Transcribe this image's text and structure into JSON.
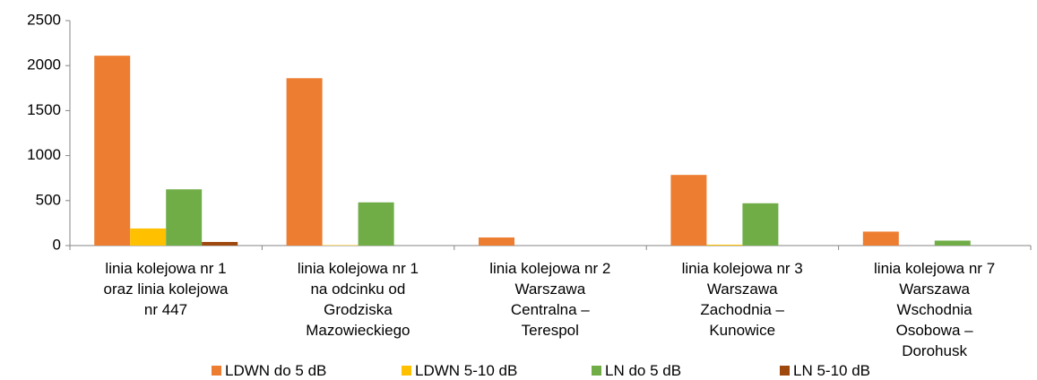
{
  "chart_data": {
    "type": "bar",
    "categories": [
      "linia kolejowa nr 1\noraz linia kolejowa\nnr 447",
      "linia kolejowa nr 1\nna odcinku od\nGrodziska\nMazowieckiego",
      "linia kolejowa nr 2\nWarszawa\nCentralna –\nTerespol",
      "linia kolejowa nr 3\nWarszawa\nZachodnia –\nKunowice",
      "linia kolejowa nr 7\nWarszawa\nWschodnia\nOsobowa –\nDorohusk"
    ],
    "series": [
      {
        "name": "LDWN do 5 dB",
        "color": "#ed7d31",
        "values": [
          2110,
          1860,
          90,
          785,
          155
        ]
      },
      {
        "name": "LDWN 5-10 dB",
        "color": "#ffc000",
        "values": [
          190,
          5,
          0,
          10,
          0
        ]
      },
      {
        "name": "LN do 5 dB",
        "color": "#70ad47",
        "values": [
          625,
          480,
          0,
          470,
          55
        ]
      },
      {
        "name": "LN 5-10 dB",
        "color": "#9e480e",
        "values": [
          40,
          0,
          0,
          0,
          0
        ]
      }
    ],
    "ylim": [
      0,
      2500
    ],
    "yticks": [
      0,
      500,
      1000,
      1500,
      2000,
      2500
    ],
    "legend": "bottom"
  }
}
